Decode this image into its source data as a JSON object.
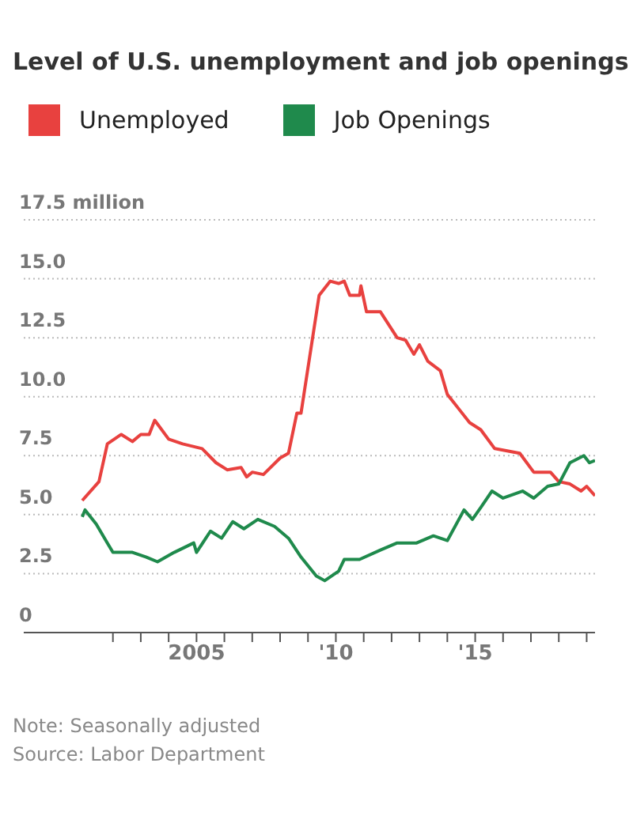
{
  "chart_data": {
    "type": "line",
    "title": "Level of U.S. unemployment and job openings",
    "xlim": [
      1998.8,
      2019.3
    ],
    "xticks": [
      {
        "value": 2002,
        "label": null
      },
      {
        "value": 2003,
        "label": null
      },
      {
        "value": 2004,
        "label": null
      },
      2005,
      {
        "value": 2006,
        "label": null
      },
      {
        "value": 2007,
        "label": null
      },
      {
        "value": 2008,
        "label": null
      },
      {
        "value": 2009,
        "label": null
      },
      {
        "value": 2010,
        "label": "'10"
      },
      {
        "value": 2011,
        "label": null
      },
      {
        "value": 2012,
        "label": null
      },
      {
        "value": 2013,
        "label": null
      },
      {
        "value": 2014,
        "label": null
      },
      {
        "value": 2015,
        "label": "'15"
      },
      {
        "value": 2016,
        "label": null
      },
      {
        "value": 2017,
        "label": null
      },
      {
        "value": 2018,
        "label": null
      },
      {
        "value": 2019,
        "label": null
      }
    ],
    "ylim": [
      0,
      17.5
    ],
    "yticks": [
      0,
      2.5,
      {
        "value": 5,
        "label": "5.0"
      },
      7.5,
      {
        "value": 10,
        "label": "10.0"
      },
      12.5,
      {
        "value": 15,
        "label": "15.0"
      },
      {
        "value": 17.5,
        "label": "17.5 million"
      }
    ],
    "grid": "y",
    "legend": "top left",
    "marker": "none",
    "line_style": "solid",
    "series": [
      {
        "name": "Unemployed",
        "color": "#e8413f",
        "x": [
          2000.9,
          2001.5,
          2001.8,
          2002.3,
          2002.7,
          2003.0,
          2003.3,
          2003.5,
          2004.0,
          2004.5,
          2005.2,
          2005.7,
          2006.1,
          2006.6,
          2006.8,
          2007.0,
          2007.4,
          2008.0,
          2008.3,
          2008.6,
          2008.75,
          2009.4,
          2009.8,
          2010.1,
          2010.3,
          2010.5,
          2010.85,
          2010.9,
          2011.1,
          2011.6,
          2012.2,
          2012.5,
          2012.8,
          2013.0,
          2013.3,
          2013.75,
          2014.0,
          2014.4,
          2014.8,
          2015.2,
          2015.7,
          2016.6,
          2017.1,
          2017.7,
          2018.0,
          2018.4,
          2018.8,
          2019.0,
          2019.3
        ],
        "values": [
          5.6,
          6.4,
          8.0,
          8.4,
          8.1,
          8.4,
          8.4,
          9.0,
          8.2,
          8.0,
          7.8,
          7.2,
          6.9,
          7.0,
          6.6,
          6.8,
          6.7,
          7.4,
          7.6,
          9.3,
          9.3,
          14.3,
          14.9,
          14.8,
          14.9,
          14.3,
          14.3,
          14.7,
          13.6,
          13.6,
          12.5,
          12.4,
          11.8,
          12.2,
          11.5,
          11.1,
          10.1,
          9.5,
          8.9,
          8.6,
          7.8,
          7.6,
          6.8,
          6.8,
          6.4,
          6.3,
          6.0,
          6.2,
          5.8
        ]
      },
      {
        "name": "Job Openings",
        "color": "#1f8a4c",
        "x": [
          2000.9,
          2001.0,
          2001.4,
          2001.8,
          2002.0,
          2002.7,
          2003.2,
          2003.6,
          2004.2,
          2004.9,
          2005.0,
          2005.5,
          2005.9,
          2006.3,
          2006.7,
          2007.2,
          2007.8,
          2008.3,
          2008.75,
          2009.3,
          2009.6,
          2010.1,
          2010.3,
          2010.85,
          2011.6,
          2012.2,
          2012.9,
          2013.5,
          2014.0,
          2014.6,
          2014.9,
          2015.2,
          2015.6,
          2016.0,
          2016.7,
          2017.1,
          2017.6,
          2018.0,
          2018.4,
          2018.9,
          2019.1,
          2019.3
        ],
        "values": [
          4.9,
          5.2,
          4.6,
          3.8,
          3.4,
          3.4,
          3.2,
          3.0,
          3.4,
          3.8,
          3.4,
          4.3,
          4.0,
          4.7,
          4.4,
          4.8,
          4.5,
          4.0,
          3.2,
          2.4,
          2.2,
          2.6,
          3.1,
          3.1,
          3.5,
          3.8,
          3.8,
          4.1,
          3.9,
          5.2,
          4.8,
          5.3,
          6.0,
          5.7,
          6.0,
          5.7,
          6.2,
          6.3,
          7.2,
          7.5,
          7.2,
          7.3
        ]
      }
    ],
    "annotations": [
      "Note: Seasonally adjusted",
      "Source: Labor Department"
    ]
  }
}
